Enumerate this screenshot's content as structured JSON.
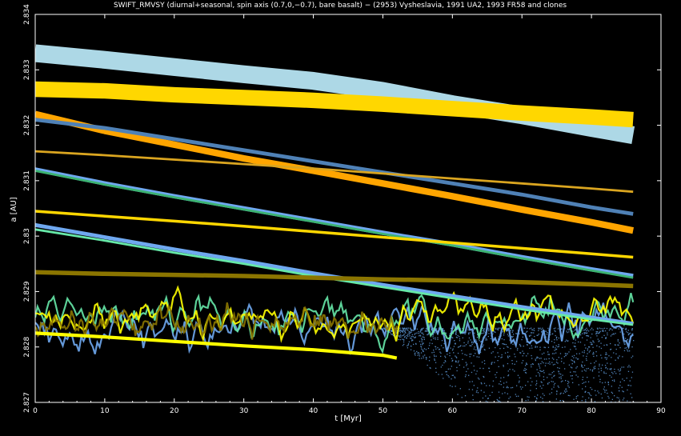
{
  "chart_data": {
    "type": "line",
    "title": "SWIFT_RMVSY (diurnal+seasonal, spin axis (0.7,0,−0.7), bare basalt) − (2953) Vysheslavia, 1991 UA2, 1993 FR58 and clones",
    "xlabel": "t [Myr]",
    "ylabel": "a [AU]",
    "xlim": [
      0,
      90
    ],
    "ylim": [
      2.827,
      2.834
    ],
    "xticks": [
      0,
      10,
      20,
      30,
      40,
      50,
      60,
      70,
      80,
      90
    ],
    "yticks": [
      2.827,
      2.828,
      2.829,
      2.83,
      2.831,
      2.832,
      2.833,
      2.834
    ],
    "grid": false,
    "colors": {
      "lightblue": "#add8e6",
      "gold": "#ffd700",
      "orange": "#ffa500",
      "steelblue": "#4f81b6",
      "goldenrod": "#daa520",
      "cornflower": "#6fa8f0",
      "seagreen": "#3cb371",
      "olive": "#8b7500",
      "aquamarine": "#66e8a8",
      "yellow": "#ffff00"
    },
    "series": [
      {
        "color": "lightblue",
        "width": 0.00032,
        "x": [
          0,
          10,
          20,
          30,
          40,
          50,
          60,
          70,
          80,
          86
        ],
        "y": [
          2.8333,
          2.83318,
          2.83305,
          2.83292,
          2.8328,
          2.83262,
          2.83238,
          2.83218,
          2.83195,
          2.83182
        ]
      },
      {
        "color": "gold",
        "width": 0.00028,
        "x": [
          0,
          10,
          20,
          30,
          40,
          50,
          60,
          70,
          80,
          86
        ],
        "y": [
          2.83265,
          2.83262,
          2.83255,
          2.8325,
          2.83245,
          2.83238,
          2.8323,
          2.83222,
          2.83215,
          2.8321
        ]
      },
      {
        "color": "orange",
        "width": 0.00012,
        "x": [
          0,
          10,
          20,
          30,
          40,
          50,
          60,
          70,
          80,
          86
        ],
        "y": [
          2.8322,
          2.8319,
          2.83165,
          2.8314,
          2.83118,
          2.83095,
          2.83072,
          2.83048,
          2.83025,
          2.8301
        ]
      },
      {
        "color": "steelblue",
        "width": 7e-05,
        "x": [
          0,
          10,
          20,
          30,
          40,
          50,
          60,
          70,
          80,
          86
        ],
        "y": [
          2.8321,
          2.83195,
          2.83175,
          2.83155,
          2.83135,
          2.83115,
          2.83095,
          2.83075,
          2.83052,
          2.8304
        ]
      },
      {
        "color": "goldenrod",
        "width": 4e-05,
        "x": [
          0,
          10,
          20,
          30,
          40,
          50,
          60,
          70,
          80,
          86
        ],
        "y": [
          2.83153,
          2.83146,
          2.83138,
          2.8313,
          2.83122,
          2.83113,
          2.83104,
          2.83095,
          2.83086,
          2.8308
        ]
      },
      {
        "color": "cornflower",
        "width": 8e-05,
        "x": [
          0,
          10,
          20,
          30,
          40,
          50,
          60,
          70,
          80,
          86
        ],
        "y": [
          2.8312,
          2.83095,
          2.83072,
          2.8305,
          2.83028,
          2.83006,
          2.82985,
          2.82962,
          2.8294,
          2.82928
        ]
      },
      {
        "color": "seagreen",
        "width": 4e-05,
        "x": [
          0,
          10,
          20,
          30,
          40,
          50,
          60,
          70,
          80,
          86
        ],
        "y": [
          2.83118,
          2.83093,
          2.8307,
          2.83048,
          2.83026,
          2.83004,
          2.82983,
          2.8296,
          2.82938,
          2.82925
        ]
      },
      {
        "color": "gold",
        "width": 5e-05,
        "x": [
          0,
          10,
          20,
          30,
          40,
          50,
          60,
          70,
          80,
          86
        ],
        "y": [
          2.83045,
          2.83036,
          2.83027,
          2.83018,
          2.83008,
          2.82998,
          2.82988,
          2.82978,
          2.82968,
          2.82962
        ]
      },
      {
        "color": "cornflower",
        "width": 7e-05,
        "x": [
          0,
          10,
          20,
          30,
          40,
          50,
          60,
          70,
          80,
          86
        ],
        "y": [
          2.8302,
          2.82998,
          2.82976,
          2.82955,
          2.82933,
          2.82912,
          2.82892,
          2.82872,
          2.82853,
          2.82842
        ]
      },
      {
        "color": "aquamarine",
        "width": 4e-05,
        "x": [
          0,
          10,
          20,
          30,
          40,
          50,
          60,
          70,
          80,
          86
        ],
        "y": [
          2.83012,
          2.82992,
          2.8297,
          2.8295,
          2.82928,
          2.82908,
          2.82888,
          2.82868,
          2.8285,
          2.8284
        ]
      },
      {
        "color": "olive",
        "width": 8e-05,
        "x": [
          0,
          10,
          20,
          30,
          40,
          50,
          60,
          70,
          80,
          86
        ],
        "y": [
          2.82935,
          2.82932,
          2.8293,
          2.82928,
          2.82925,
          2.82922,
          2.8292,
          2.82917,
          2.82913,
          2.8291
        ]
      },
      {
        "color": "yellow",
        "width": 6e-05,
        "x": [
          0,
          10,
          20,
          30,
          40,
          45,
          50,
          52
        ],
        "y": [
          2.82825,
          2.82818,
          2.8281,
          2.82802,
          2.82795,
          2.8279,
          2.82785,
          2.8278
        ]
      }
    ],
    "chaotic": [
      {
        "color": "cornflower",
        "x0": 0,
        "x1": 86,
        "center": 2.82835,
        "amp": 0.00045
      },
      {
        "color": "aquamarine",
        "x0": 0,
        "x1": 86,
        "center": 2.8285,
        "amp": 0.0004
      },
      {
        "color": "yellow",
        "x0": 0,
        "x1": 86,
        "center": 2.8286,
        "amp": 0.00035
      },
      {
        "color": "olive",
        "x0": 0,
        "x1": 52,
        "center": 2.82845,
        "amp": 0.0003
      }
    ],
    "scatter_cloud": {
      "color": "steelblue",
      "x0": 50,
      "x1": 86,
      "y0": 2.827,
      "y1": 2.82835
    }
  }
}
